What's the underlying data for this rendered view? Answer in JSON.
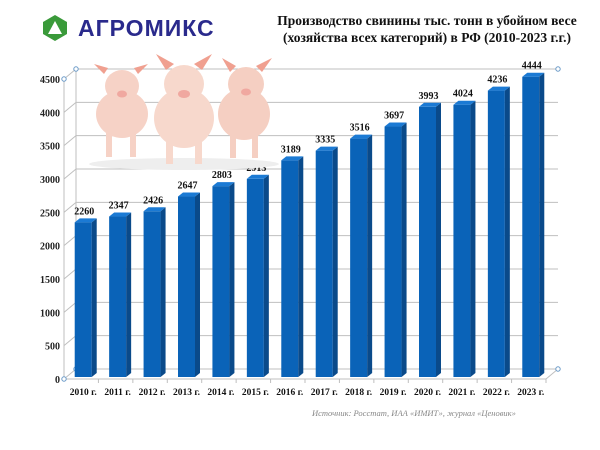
{
  "logo": {
    "text": "АГРОМИКС",
    "icon": "green-hexagon-triangle-icon",
    "icon_color": "#3a9a3a",
    "text_color": "#2a2a8c"
  },
  "title": {
    "line1": "Производство свинины тыс. тонн в убойном весе",
    "line2": "(хозяйства всех категорий) в РФ (2010-2023 г.г.)"
  },
  "source": "Источник: Росстат, ИАА «ИМИТ», журнал «Ценовик»",
  "illustration": "three-pigs-photo",
  "colors": {
    "bar_front": "#0a63b8",
    "bar_side": "#0a4a8a",
    "bar_top": "#1b7ad4",
    "grid": "#bfbfbf"
  },
  "chart_data": {
    "type": "bar",
    "title": "Производство свинины тыс. тонн в убойном весе (хозяйства всех категорий) в РФ (2010-2023 г.г.)",
    "xlabel": "",
    "ylabel": "",
    "categories": [
      "2010 г.",
      "2011 г.",
      "2012 г.",
      "2013 г.",
      "2014 г.",
      "2015 г.",
      "2016 г.",
      "2017 г.",
      "2018 г.",
      "2019 г.",
      "2020 г.",
      "2021 г.",
      "2022 г.",
      "2023 г."
    ],
    "values": [
      2260,
      2347,
      2426,
      2647,
      2803,
      2913,
      3189,
      3335,
      3516,
      3697,
      3993,
      4024,
      4236,
      4444
    ],
    "ylim": [
      0,
      4500
    ],
    "yticks": [
      "0",
      "500",
      "1000",
      "1500",
      "2000",
      "2500",
      "3000",
      "3500",
      "4000",
      "4500"
    ],
    "grid": true,
    "legend": "none",
    "style": "3d-column"
  }
}
